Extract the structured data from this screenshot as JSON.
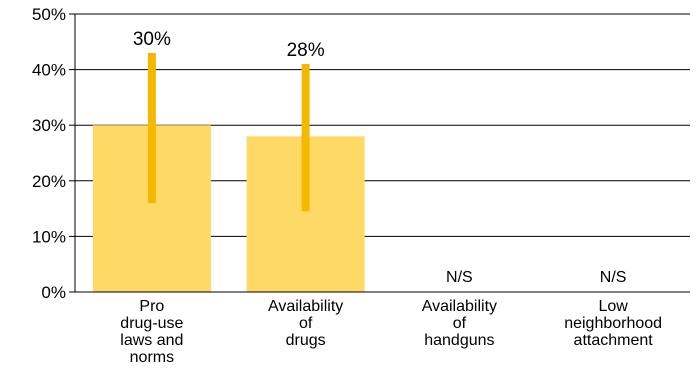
{
  "chart_data": {
    "type": "bar",
    "categories": [
      [
        "Pro",
        "drug-use",
        "laws and",
        "norms"
      ],
      [
        "Availability",
        "of",
        "drugs"
      ],
      [
        "Availability",
        "of",
        "handguns"
      ],
      [
        "Low",
        "neighborhood",
        "attachment"
      ]
    ],
    "values": [
      30,
      28,
      null,
      null
    ],
    "error_bars": [
      {
        "low": 16,
        "high": 43
      },
      {
        "low": 14.5,
        "high": 41
      },
      null,
      null
    ],
    "data_labels": [
      "30%",
      "28%",
      "N/S",
      "N/S"
    ],
    "y_ticks": [
      "0%",
      "10%",
      "20%",
      "30%",
      "40%",
      "50%"
    ],
    "ylim": [
      0,
      50
    ],
    "grid": true,
    "legend": "none",
    "title": "",
    "xlabel": "",
    "ylabel": "",
    "colors": {
      "bar": "#FFD966",
      "error_bar": "#F5B800",
      "grid": "#000000",
      "text": "#000000"
    }
  }
}
